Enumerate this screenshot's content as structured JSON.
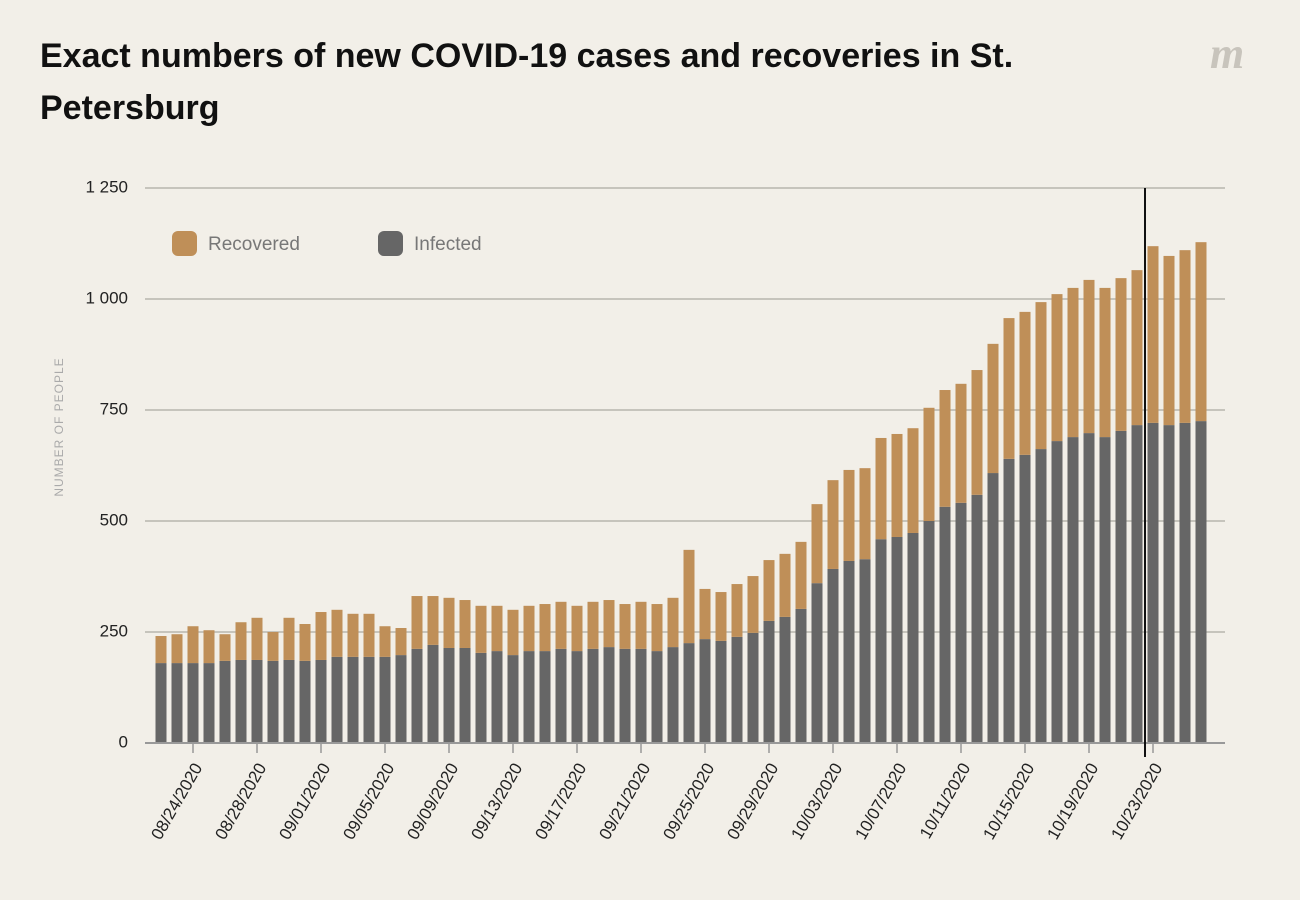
{
  "logo": "m",
  "chart_data": {
    "type": "stacked-bar",
    "title": "Exact numbers of new COVID-19 cases and recoveries in St. Petersburg",
    "y_label": "NUMBER OF PEOPLE",
    "categories": [
      null,
      null,
      "08/24/2020",
      null,
      null,
      null,
      "08/28/2020",
      null,
      null,
      null,
      "09/01/2020",
      null,
      null,
      null,
      "09/05/2020",
      null,
      null,
      null,
      "09/09/2020",
      null,
      null,
      null,
      "09/13/2020",
      null,
      null,
      null,
      "09/17/2020",
      null,
      null,
      null,
      "09/21/2020",
      null,
      null,
      null,
      "09/25/2020",
      null,
      null,
      null,
      "09/29/2020",
      null,
      null,
      null,
      "10/03/2020",
      null,
      null,
      null,
      "10/07/2020",
      null,
      null,
      null,
      "10/11/2020",
      null,
      null,
      null,
      "10/15/2020",
      null,
      null,
      null,
      "10/19/2020",
      null,
      null,
      null,
      "10/23/2020",
      null,
      null,
      null
    ],
    "series": [
      {
        "name": "Recovered",
        "color": "#bf8f58",
        "values": [
          61,
          65,
          83,
          74,
          60,
          85,
          95,
          65,
          95,
          83,
          108,
          106,
          97,
          97,
          69,
          61,
          119,
          110,
          113,
          108,
          106,
          102,
          102,
          102,
          106,
          106,
          102,
          106,
          106,
          101,
          106,
          106,
          111,
          210,
          113,
          110,
          119,
          128,
          137,
          142,
          151,
          178,
          200,
          205,
          205,
          228,
          232,
          236,
          255,
          263,
          268,
          281,
          291,
          317,
          322,
          331,
          331,
          336,
          345,
          336,
          344,
          349,
          398,
          381,
          389,
          403
        ]
      },
      {
        "name": "Infected",
        "color": "#666666",
        "values": [
          180,
          180,
          180,
          180,
          185,
          187,
          187,
          185,
          187,
          185,
          187,
          194,
          194,
          194,
          194,
          198,
          212,
          221,
          214,
          214,
          203,
          207,
          198,
          207,
          207,
          212,
          207,
          212,
          216,
          212,
          212,
          207,
          216,
          225,
          234,
          230,
          239,
          248,
          275,
          284,
          302,
          360,
          392,
          410,
          414,
          459,
          464,
          473,
          500,
          532,
          541,
          559,
          608,
          640,
          649,
          662,
          680,
          689,
          698,
          689,
          703,
          716,
          721,
          716,
          721,
          725
        ]
      }
    ],
    "ylim": [
      0,
      1250
    ],
    "yticks": [
      0,
      250,
      500,
      750,
      {
        "value": 1000,
        "label": "1 000"
      },
      {
        "value": 1250,
        "label": "1 250"
      }
    ],
    "grid": true
  }
}
